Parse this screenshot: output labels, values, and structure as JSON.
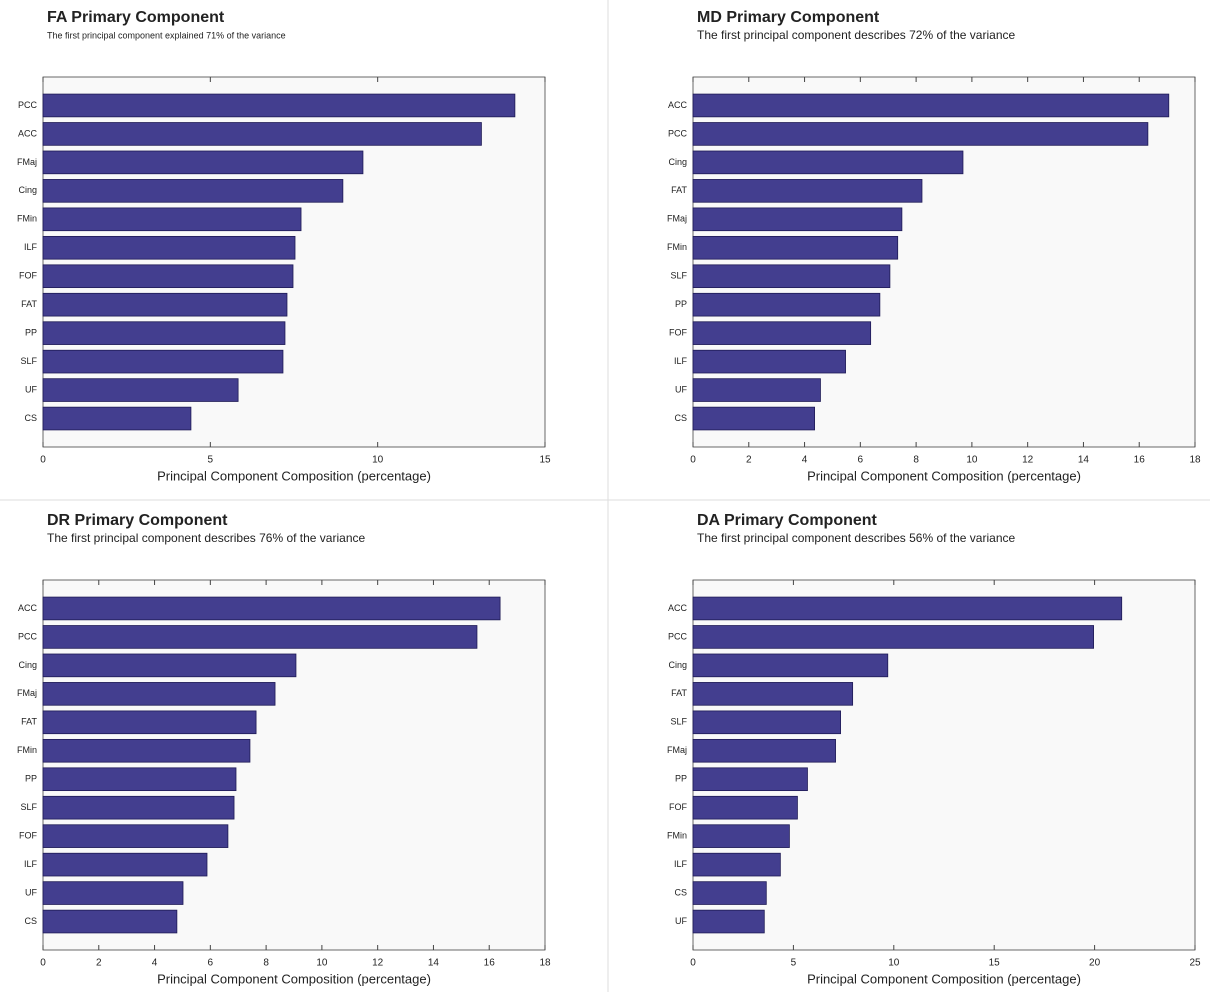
{
  "chart_data": [
    {
      "type": "bar",
      "orientation": "horizontal",
      "title": "FA Primary Component",
      "subtitle": "The first principal component explained 71% of the variance",
      "xlabel": "Principal Component Composition  (percentage)",
      "categories": [
        "PCC",
        "ACC",
        "FMaj",
        "Cing",
        "FMin",
        "ILF",
        "FOF",
        "FAT",
        "PP",
        "SLF",
        "UF",
        "CS"
      ],
      "values": [
        14.1,
        13.1,
        9.56,
        8.96,
        7.71,
        7.53,
        7.47,
        7.29,
        7.23,
        7.17,
        5.83,
        4.42
      ],
      "color": "#433e8f",
      "xlim": [
        0,
        15
      ],
      "xticks": [
        0,
        5,
        10,
        15
      ]
    },
    {
      "type": "bar",
      "orientation": "horizontal",
      "title": "MD Primary Component",
      "subtitle": "The first principal component describes 72% of the variance",
      "xlabel": "Principal Component Composition  (percentage)",
      "categories": [
        "ACC",
        "PCC",
        "Cing",
        "FAT",
        "FMaj",
        "FMin",
        "SLF",
        "PP",
        "FOF",
        "ILF",
        "UF",
        "CS"
      ],
      "values": [
        17.06,
        16.31,
        9.68,
        8.21,
        7.49,
        7.34,
        7.06,
        6.7,
        6.37,
        5.47,
        4.57,
        4.36
      ],
      "color": "#433e8f",
      "xlim": [
        0,
        18
      ],
      "xticks": [
        0,
        2,
        4,
        6,
        8,
        10,
        12,
        14,
        16,
        18
      ]
    },
    {
      "type": "bar",
      "orientation": "horizontal",
      "title": "DR Primary Component",
      "subtitle": "The first principal component describes 76% of the variance",
      "xlabel": "Principal Component Composition  (percentage)",
      "categories": [
        "ACC",
        "PCC",
        "Cing",
        "FMaj",
        "FAT",
        "FMin",
        "PP",
        "SLF",
        "FOF",
        "ILF",
        "UF",
        "CS"
      ],
      "values": [
        16.39,
        15.56,
        9.07,
        8.32,
        7.64,
        7.42,
        6.92,
        6.85,
        6.63,
        5.88,
        5.02,
        4.8
      ],
      "color": "#433e8f",
      "xlim": [
        0,
        18
      ],
      "xticks": [
        0,
        2,
        4,
        6,
        8,
        10,
        12,
        14,
        16,
        18
      ]
    },
    {
      "type": "bar",
      "orientation": "horizontal",
      "title": "DA Primary Component",
      "subtitle": "The first principal component describes 56% of the variance",
      "xlabel": "Principal Component Composition  (percentage)",
      "categories": [
        "ACC",
        "PCC",
        "Cing",
        "FAT",
        "SLF",
        "FMaj",
        "PP",
        "FOF",
        "FMin",
        "ILF",
        "CS",
        "UF"
      ],
      "values": [
        21.35,
        19.95,
        9.7,
        7.95,
        7.35,
        7.1,
        5.7,
        5.2,
        4.8,
        4.35,
        3.65,
        3.55
      ],
      "color": "#433e8f",
      "xlim": [
        0,
        25
      ],
      "xticks": [
        0,
        5,
        10,
        15,
        20,
        25
      ]
    }
  ]
}
